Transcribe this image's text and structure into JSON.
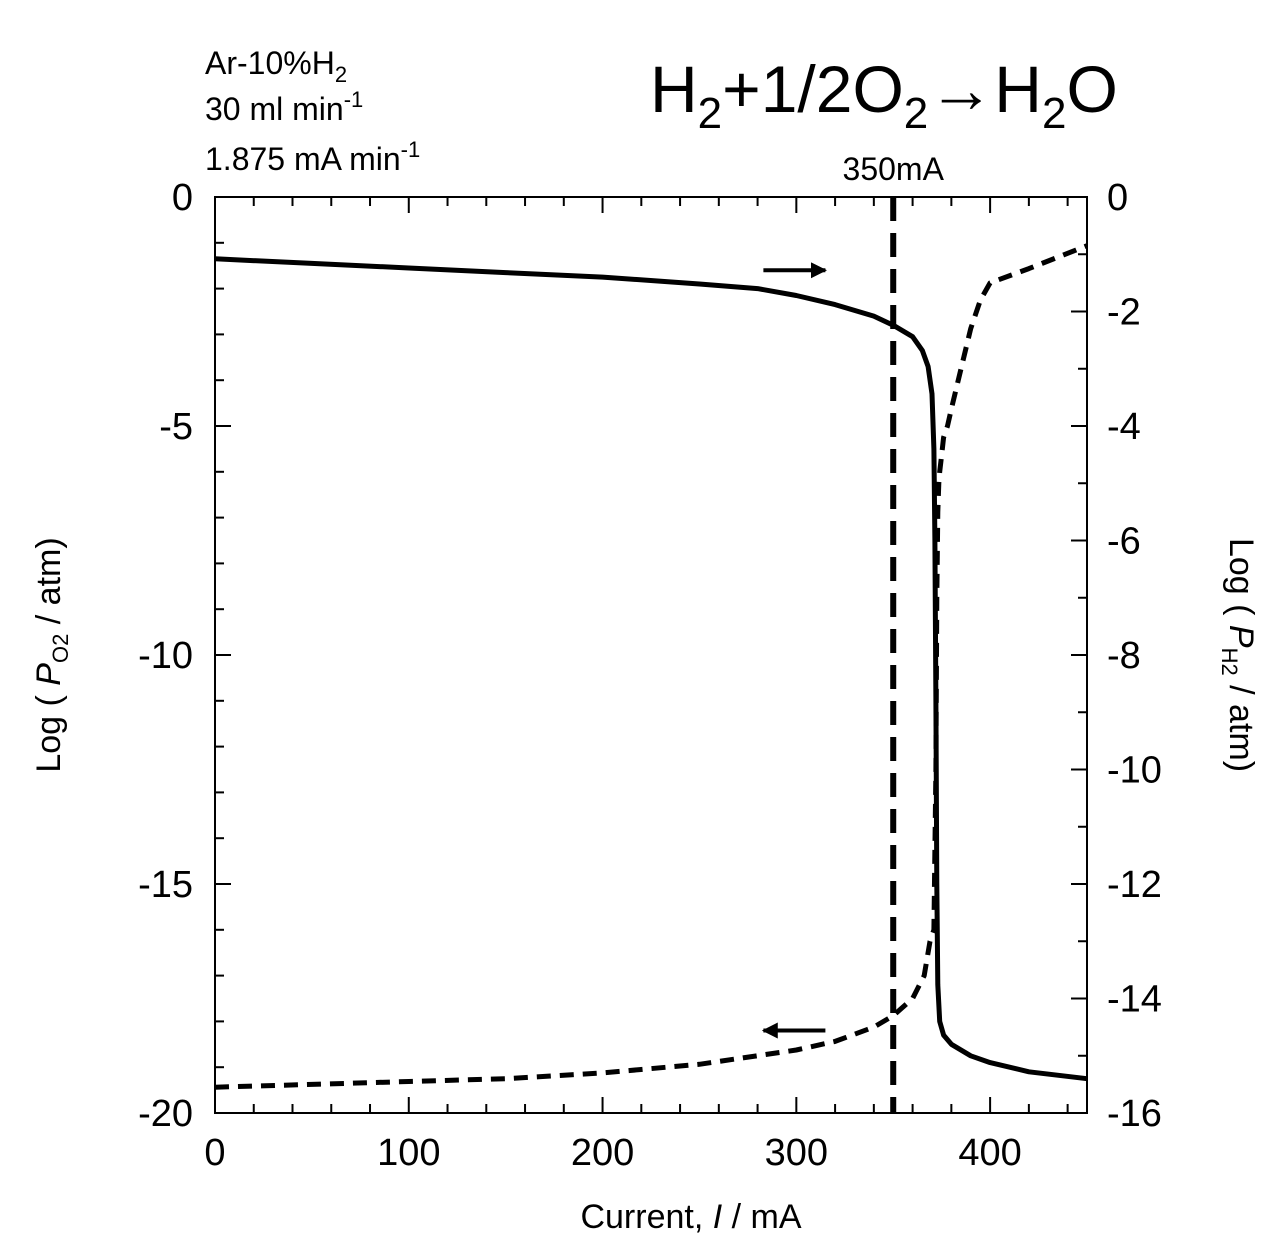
{
  "chart_data": {
    "type": "line",
    "conditions": {
      "line1": {
        "text": "Ar-10%H",
        "sub": "2"
      },
      "line2": {
        "text": "30 ml min",
        "sup": "-1"
      },
      "line3": {
        "text": "1.875 mA min",
        "sup": "-1"
      }
    },
    "reaction": {
      "h": "H",
      "two": "2",
      "plus_half": "+1/2O",
      "arrow_h": "→H",
      "o": "O"
    },
    "x_axis": {
      "label_prefix": "Current, ",
      "label_var": "I",
      "label_suffix": " / mA",
      "range": [
        0,
        450
      ],
      "ticks": [
        0,
        100,
        200,
        300,
        400
      ],
      "tick_labels": [
        "0",
        "100",
        "200",
        "300",
        "400"
      ],
      "minor_step": 20
    },
    "y_left": {
      "label_prefix": "Log ( ",
      "label_var": "P",
      "label_sub": "O2",
      "label_suffix": " / atm)",
      "range": [
        -20,
        0
      ],
      "ticks": [
        0,
        -5,
        -10,
        -15,
        -20
      ],
      "tick_labels": [
        "0",
        "-5",
        "-10",
        "-15",
        "-20"
      ],
      "minor_step": 1
    },
    "y_right": {
      "label_prefix": "Log ( ",
      "label_var": "P",
      "label_sub": "H2",
      "label_suffix": " / atm)",
      "range": [
        -16,
        0
      ],
      "ticks": [
        0,
        -2,
        -4,
        -6,
        -8,
        -10,
        -12,
        -14,
        -16
      ],
      "tick_labels": [
        "0",
        "-2",
        "-4",
        "-6",
        "-8",
        "-10",
        "-12",
        "-14",
        "-16"
      ],
      "minor_step": 1
    },
    "marker": {
      "x": 350,
      "label": "350mA"
    },
    "series": [
      {
        "axis": "left",
        "style": "solid",
        "x": [
          0,
          50,
          100,
          150,
          200,
          250,
          280,
          300,
          320,
          340,
          350,
          360,
          365,
          368,
          370,
          371,
          371.5,
          372,
          372.5,
          373,
          374,
          376,
          380,
          390,
          400,
          420,
          450
        ],
        "y": [
          -1.35,
          -1.45,
          -1.55,
          -1.65,
          -1.75,
          -1.9,
          -2.0,
          -2.15,
          -2.35,
          -2.6,
          -2.8,
          -3.05,
          -3.35,
          -3.7,
          -4.3,
          -5.5,
          -7.5,
          -11.0,
          -15.0,
          -17.2,
          -18.0,
          -18.3,
          -18.5,
          -18.75,
          -18.9,
          -19.1,
          -19.25
        ]
      },
      {
        "axis": "right",
        "style": "dashed",
        "x": [
          0,
          50,
          100,
          150,
          200,
          250,
          300,
          320,
          340,
          350,
          360,
          366,
          369,
          371,
          372,
          372.5,
          373,
          373.5,
          374,
          375,
          376,
          378,
          380,
          385,
          390,
          395,
          400,
          420,
          450
        ],
        "y": [
          -15.55,
          -15.5,
          -15.45,
          -15.4,
          -15.3,
          -15.15,
          -14.9,
          -14.75,
          -14.5,
          -14.3,
          -14.0,
          -13.6,
          -13.0,
          -12.8,
          -10.0,
          -7.0,
          -5.5,
          -5.0,
          -4.8,
          -4.5,
          -4.2,
          -4.0,
          -3.7,
          -3.0,
          -2.3,
          -1.8,
          -1.5,
          -1.25,
          -0.85
        ]
      }
    ],
    "arrows": [
      {
        "series": 0,
        "direction": "right",
        "x_start": 283,
        "x_end": 315,
        "y_left": -1.6
      },
      {
        "series": 1,
        "direction": "left",
        "x_start": 315,
        "x_end": 283,
        "y_left": -18.2
      }
    ]
  }
}
